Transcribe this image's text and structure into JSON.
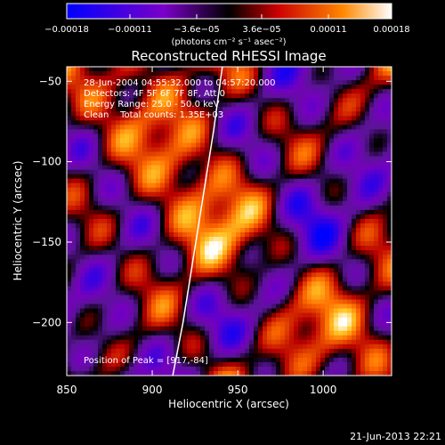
{
  "colorbar": {
    "tick_labels": [
      "−0.00018",
      "−0.00011",
      "−3.6e−05",
      "3.6e−05",
      "0.00011",
      "0.00018"
    ],
    "tick_values": [
      -0.00018,
      -0.00011,
      -3.6e-05,
      3.6e-05,
      0.00011,
      0.00018
    ],
    "range": [
      -0.00018,
      0.00018
    ],
    "units_label": "(photons cm⁻² s⁻¹ asec⁻²)",
    "colors": [
      "#0000ff",
      "#7a00c8",
      "#000000",
      "#cc0000",
      "#ff8800",
      "#ffffff"
    ]
  },
  "chart_data": {
    "type": "heatmap",
    "title": "Reconstructed RHESSI Image",
    "xlabel": "Heliocentric X (arcsec)",
    "ylabel": "Heliocentric Y (arcsec)",
    "xlim": [
      850,
      1040
    ],
    "ylim": [
      -233,
      -41
    ],
    "x_ticks": [
      850,
      900,
      950,
      1000
    ],
    "x_tick_labels": [
      "850",
      "900",
      "950",
      "1000"
    ],
    "y_ticks": [
      -50,
      -100,
      -150,
      -200
    ],
    "y_tick_labels": [
      "−50",
      "−100",
      "−150",
      "−200"
    ],
    "annotations": {
      "time_range": "28-Jun-2004 04:55:32.000 to 04:57:20.000",
      "detectors": "Detectors: 4F 5F 6F 7F 8F, Att 0",
      "energy": "Energy Range: 25.0 - 50.0 keV",
      "clean": "Clean    Total counts: 1.35E+03",
      "peak": "Position of Peak = [917,-84]"
    },
    "limb_curve": {
      "x": [
        941,
        936,
        930,
        924,
        918,
        912
      ],
      "y": [
        -41,
        -80,
        -120,
        -160,
        -200,
        -233
      ]
    }
  },
  "footer": {
    "timestamp": "21-Jun-2013 22:21"
  }
}
